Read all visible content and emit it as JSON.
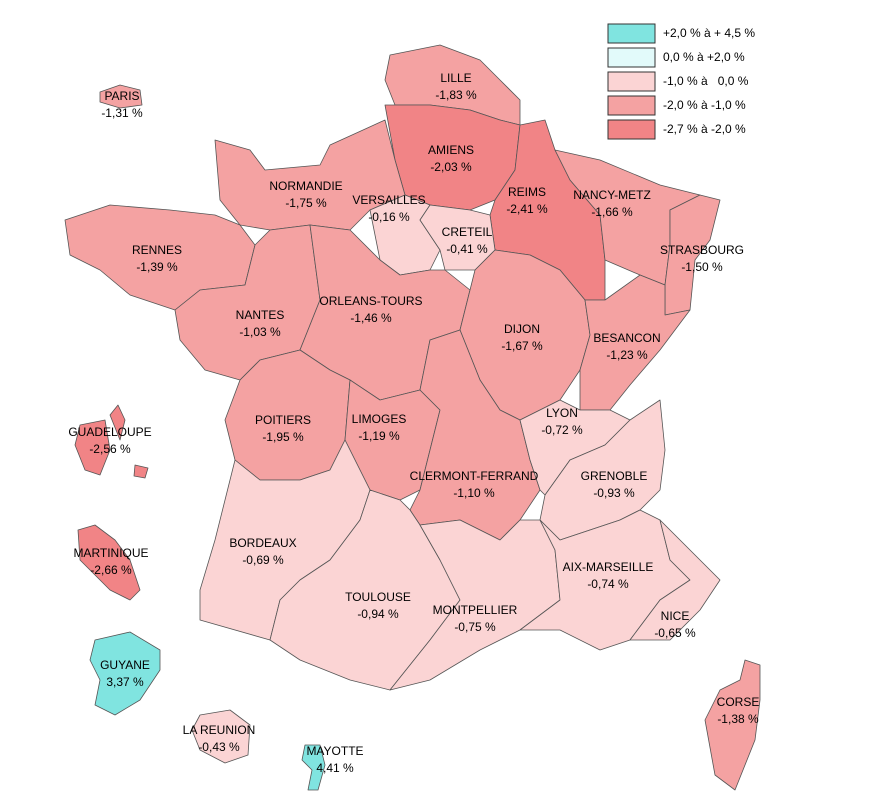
{
  "legend": [
    {
      "label": "+2,0 % à + 4,5 %",
      "color": "#80e4e0"
    },
    {
      "label": "0,0 % à +2,0 %",
      "color": "#e2fafa"
    },
    {
      "label": "-1,0 % à   0,0 %",
      "color": "#fbd4d4"
    },
    {
      "label": "-2,0 % à -1,0 %",
      "color": "#f4a2a2"
    },
    {
      "label": "-2,7 % à -2,0 %",
      "color": "#f18486"
    }
  ],
  "regions": [
    {
      "name": "LILLE",
      "value": -1.83,
      "value_label": "-1,83 %",
      "color": "#f4a2a2"
    },
    {
      "name": "AMIENS",
      "value": -2.03,
      "value_label": "-2,03 %",
      "color": "#f18486"
    },
    {
      "name": "REIMS",
      "value": -2.41,
      "value_label": "-2,41 %",
      "color": "#f18486"
    },
    {
      "name": "NANCY-METZ",
      "value": -1.66,
      "value_label": "-1,66 %",
      "color": "#f4a2a2"
    },
    {
      "name": "STRASBOURG",
      "value": -1.5,
      "value_label": "-1,50 %",
      "color": "#f4a2a2"
    },
    {
      "name": "NORMANDIE",
      "value": -1.75,
      "value_label": "-1,75 %",
      "color": "#f4a2a2"
    },
    {
      "name": "VERSAILLES",
      "value": -0.16,
      "value_label": "-0,16 %",
      "color": "#fbd4d4"
    },
    {
      "name": "CRETEIL",
      "value": -0.41,
      "value_label": "-0,41 %",
      "color": "#fbd4d4"
    },
    {
      "name": "RENNES",
      "value": -1.39,
      "value_label": "-1,39 %",
      "color": "#f4a2a2"
    },
    {
      "name": "NANTES",
      "value": -1.03,
      "value_label": "-1,03 %",
      "color": "#f4a2a2"
    },
    {
      "name": "ORLEANS-TOURS",
      "value": -1.46,
      "value_label": "-1,46 %",
      "color": "#f4a2a2"
    },
    {
      "name": "DIJON",
      "value": -1.67,
      "value_label": "-1,67 %",
      "color": "#f4a2a2"
    },
    {
      "name": "BESANCON",
      "value": -1.23,
      "value_label": "-1,23 %",
      "color": "#f4a2a2"
    },
    {
      "name": "POITIERS",
      "value": -1.95,
      "value_label": "-1,95 %",
      "color": "#f4a2a2"
    },
    {
      "name": "LIMOGES",
      "value": -1.19,
      "value_label": "-1,19 %",
      "color": "#f4a2a2"
    },
    {
      "name": "CLERMONT-FERRAND",
      "value": -1.1,
      "value_label": "-1,10 %",
      "color": "#f4a2a2"
    },
    {
      "name": "LYON",
      "value": -0.72,
      "value_label": "-0,72 %",
      "color": "#fbd4d4"
    },
    {
      "name": "GRENOBLE",
      "value": -0.93,
      "value_label": "-0,93 %",
      "color": "#fbd4d4"
    },
    {
      "name": "BORDEAUX",
      "value": -0.69,
      "value_label": "-0,69 %",
      "color": "#fbd4d4"
    },
    {
      "name": "TOULOUSE",
      "value": -0.94,
      "value_label": "-0,94 %",
      "color": "#fbd4d4"
    },
    {
      "name": "MONTPELLIER",
      "value": -0.75,
      "value_label": "-0,75 %",
      "color": "#fbd4d4"
    },
    {
      "name": "AIX-MARSEILLE",
      "value": -0.74,
      "value_label": "-0,74 %",
      "color": "#fbd4d4"
    },
    {
      "name": "NICE",
      "value": -0.65,
      "value_label": "-0,65 %",
      "color": "#fbd4d4"
    },
    {
      "name": "CORSE",
      "value": -1.38,
      "value_label": "-1,38 %",
      "color": "#f4a2a2"
    },
    {
      "name": "PARIS",
      "value": -1.31,
      "value_label": "-1,31 %",
      "color": "#f4a2a2"
    },
    {
      "name": "GUADELOUPE",
      "value": -2.56,
      "value_label": "-2,56 %",
      "color": "#f18486"
    },
    {
      "name": "MARTINIQUE",
      "value": -2.66,
      "value_label": "-2,66 %",
      "color": "#f18486"
    },
    {
      "name": "GUYANE",
      "value": 3.37,
      "value_label": "3,37 %",
      "color": "#80e4e0"
    },
    {
      "name": "LA REUNION",
      "value": -0.43,
      "value_label": "-0,43 %",
      "color": "#fbd4d4"
    },
    {
      "name": "MAYOTTE",
      "value": 4.41,
      "value_label": "4,41 %",
      "color": "#80e4e0"
    }
  ]
}
